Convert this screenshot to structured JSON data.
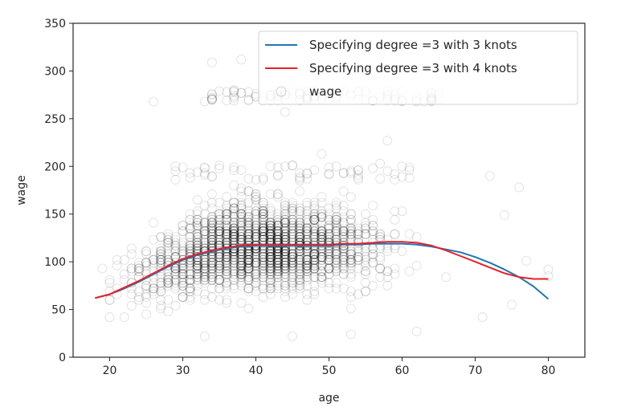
{
  "chart_data": {
    "type": "scatter",
    "title": "",
    "xlabel": "age",
    "ylabel": "wage",
    "xlim": [
      15,
      85
    ],
    "ylim": [
      0,
      350
    ],
    "grid": false,
    "x_ticks": [
      20,
      30,
      40,
      50,
      60,
      70,
      80
    ],
    "y_ticks": [
      0,
      50,
      100,
      150,
      200,
      250,
      300,
      350
    ],
    "legend_position": "upper right",
    "series": [
      {
        "name": "Specifying degree =3 with 3 knots",
        "kind": "line",
        "color": "#1f77b4",
        "x": [
          18,
          20,
          22,
          24,
          26,
          28,
          30,
          32,
          34,
          36,
          38,
          40,
          42,
          44,
          46,
          48,
          50,
          52,
          54,
          56,
          58,
          60,
          62,
          64,
          66,
          68,
          70,
          72,
          74,
          76,
          78,
          80
        ],
        "y": [
          62,
          66,
          72,
          79,
          87,
          95,
          102,
          107,
          111,
          114,
          116,
          117,
          117,
          117,
          117,
          117,
          117,
          118,
          118,
          119,
          119,
          119,
          118,
          116,
          113,
          110,
          105,
          99,
          92,
          84,
          74,
          61
        ]
      },
      {
        "name": "Specifying degree =3 with 4 knots",
        "kind": "line",
        "color": "#e8202a",
        "x": [
          18,
          20,
          22,
          24,
          26,
          28,
          30,
          32,
          34,
          36,
          38,
          40,
          42,
          44,
          46,
          48,
          50,
          52,
          54,
          56,
          58,
          60,
          62,
          64,
          66,
          68,
          70,
          72,
          74,
          76,
          78,
          80
        ],
        "y": [
          62,
          66,
          73,
          80,
          88,
          96,
          103,
          108,
          112,
          115,
          117,
          118,
          118,
          118,
          118,
          118,
          118,
          119,
          119,
          120,
          121,
          121,
          120,
          117,
          112,
          106,
          100,
          94,
          88,
          84,
          82,
          82
        ]
      },
      {
        "name": "wage",
        "kind": "scatter",
        "marker": "open-circle",
        "color": "#000000",
        "alpha": 0.1,
        "n_points_approx": 3000,
        "age_range": [
          18,
          80
        ],
        "wage_range": [
          20,
          318
        ],
        "notable_outliers": [
          {
            "age": 26,
            "wage": 268
          },
          {
            "age": 34,
            "wage": 309
          },
          {
            "age": 38,
            "wage": 312
          },
          {
            "age": 44,
            "wage": 257
          },
          {
            "age": 58,
            "wage": 227
          },
          {
            "age": 49,
            "wage": 213
          },
          {
            "age": 72,
            "wage": 190
          },
          {
            "age": 76,
            "wage": 178
          },
          {
            "age": 74,
            "wage": 149
          },
          {
            "age": 80,
            "wage": 92
          },
          {
            "age": 80,
            "wage": 85
          },
          {
            "age": 77,
            "wage": 101
          },
          {
            "age": 75,
            "wage": 55
          },
          {
            "age": 71,
            "wage": 42
          },
          {
            "age": 62,
            "wage": 27
          },
          {
            "age": 33,
            "wage": 22
          },
          {
            "age": 45,
            "wage": 22
          },
          {
            "age": 53,
            "wage": 24
          }
        ]
      }
    ]
  },
  "legend": {
    "items": [
      {
        "label": "Specifying degree =3 with 3 knots",
        "type": "line",
        "color": "#1f77b4"
      },
      {
        "label": "Specifying degree =3 with 4 knots",
        "type": "line",
        "color": "#e8202a"
      },
      {
        "label": "wage",
        "type": "marker",
        "color": "#000000"
      }
    ]
  },
  "axes": {
    "x_label": "age",
    "y_label": "wage",
    "x_tick_labels": [
      "20",
      "30",
      "40",
      "50",
      "60",
      "70",
      "80"
    ],
    "y_tick_labels": [
      "0",
      "50",
      "100",
      "150",
      "200",
      "250",
      "300",
      "350"
    ]
  }
}
